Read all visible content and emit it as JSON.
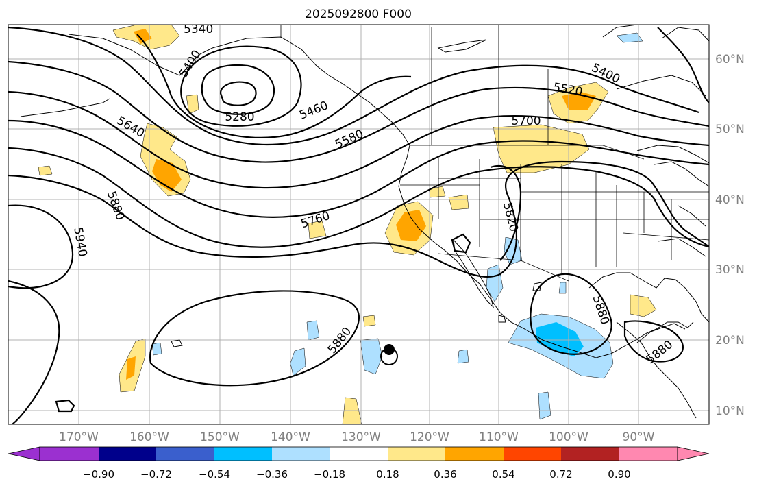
{
  "title": "2025092800 F000",
  "map": {
    "lon_labels": [
      "170°W",
      "160°W",
      "150°W",
      "140°W",
      "130°W",
      "120°W",
      "110°W",
      "100°W",
      "90°W"
    ],
    "lat_labels": [
      "60°N",
      "50°N",
      "40°N",
      "30°N",
      "20°N",
      "10°N"
    ],
    "contour_labels": [
      "5340",
      "5280",
      "5460",
      "5580",
      "5640",
      "5700",
      "5520",
      "5400",
      "5760",
      "5880",
      "5940",
      "5820",
      "5880",
      "5880",
      "5880",
      "5400"
    ]
  },
  "colorbar": {
    "tick_labels": [
      "−0.90",
      "−0.72",
      "−0.54",
      "−0.36",
      "−0.18",
      "0.18",
      "0.36",
      "0.54",
      "0.72",
      "0.90"
    ],
    "colors": [
      "#9b30d0",
      "#00008b",
      "#3a5fcd",
      "#00bfff",
      "#aee0ff",
      "#ffffff",
      "#ffe88a",
      "#ffa500",
      "#ff4500",
      "#b22222",
      "#ff88b0"
    ]
  },
  "fill_colors": {
    "pos_low": "#ffe88a",
    "pos_mid": "#ffa500",
    "neg_low": "#aee0ff",
    "neg_mid": "#00bfff"
  }
}
